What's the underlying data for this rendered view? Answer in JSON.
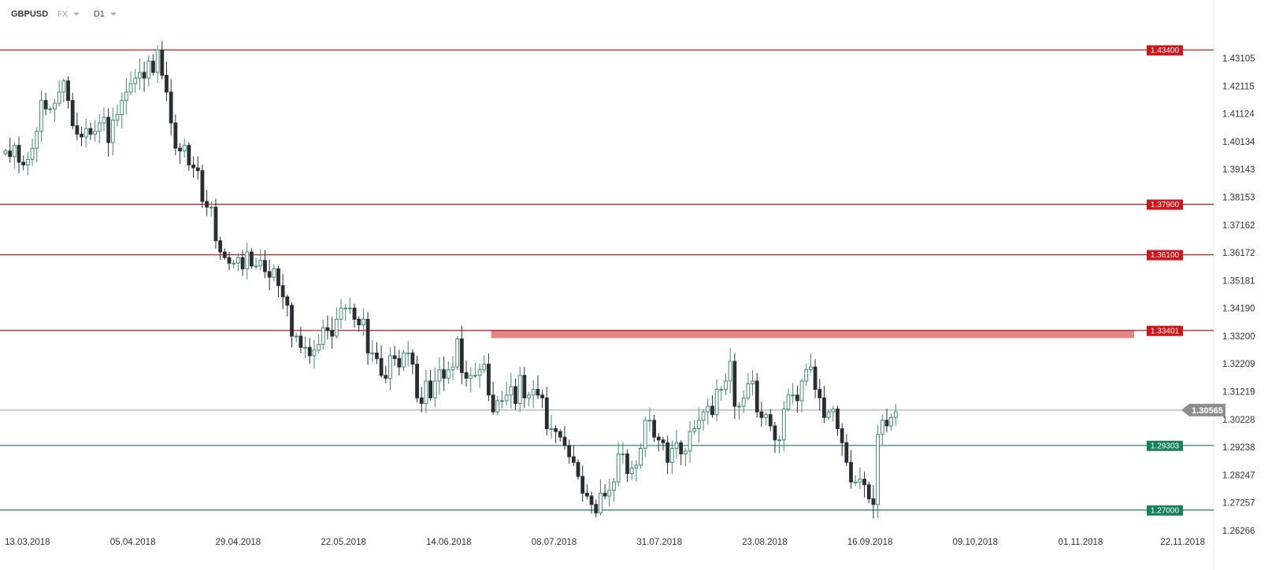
{
  "toolbar": {
    "symbol": "GBPUSD",
    "market": "FX",
    "timeframe": "D1"
  },
  "colors": {
    "bull": "#3d8f6b",
    "bear": "#2a2e33",
    "resistance": "#d0161b",
    "support": "#17805c",
    "current": "#999999",
    "zone": "#e78484",
    "axis_text": "#333333"
  },
  "chart_data": {
    "type": "candlestick",
    "symbol": "GBPUSD",
    "timeframe": "D1",
    "y_ticks": [
      "1.43105",
      "1.42115",
      "1.41124",
      "1.40134",
      "1.39143",
      "1.38153",
      "1.37162",
      "1.36172",
      "1.35181",
      "1.34190",
      "1.33200",
      "1.32209",
      "1.31219",
      "1.30228",
      "1.29238",
      "1.28247",
      "1.27257",
      "1.26266"
    ],
    "ylim": [
      1.2621,
      1.4434
    ],
    "x_labels": [
      "13.03.2018",
      "05.04.2018",
      "29.04.2018",
      "22.05.2018",
      "14.06.2018",
      "08.07.2018",
      "31.07.2018",
      "23.08.2018",
      "16.09.2018",
      "09.10.2018",
      "01.11.2018",
      "22.11.2018"
    ],
    "horizontal_levels": [
      {
        "label": "1.43400",
        "value": 1.434,
        "kind": "resistance"
      },
      {
        "label": "1.37900",
        "value": 1.379,
        "kind": "resistance"
      },
      {
        "label": "1.36100",
        "value": 1.361,
        "kind": "resistance"
      },
      {
        "label": "1.33401",
        "value": 1.33401,
        "kind": "resistance"
      },
      {
        "label": "1.29303",
        "value": 1.29303,
        "kind": "support"
      },
      {
        "label": "1.27000",
        "value": 1.27,
        "kind": "support"
      }
    ],
    "current_price": {
      "label": "1.30565",
      "value": 1.30565
    },
    "resistance_zone": {
      "from_date": "23.06.2018",
      "to_date": "11.11.2018",
      "low": 1.3313,
      "high": 1.3342
    },
    "closes": [
      1.398,
      1.396,
      1.4,
      1.394,
      1.393,
      1.395,
      1.399,
      1.405,
      1.416,
      1.413,
      1.413,
      1.415,
      1.419,
      1.423,
      1.416,
      1.407,
      1.404,
      1.403,
      1.406,
      1.404,
      1.405,
      1.408,
      1.41,
      1.401,
      1.409,
      1.411,
      1.416,
      1.419,
      1.422,
      1.424,
      1.426,
      1.424,
      1.43,
      1.426,
      1.434,
      1.425,
      1.419,
      1.408,
      1.399,
      1.398,
      1.4,
      1.393,
      1.392,
      1.391,
      1.38,
      1.378,
      1.378,
      1.366,
      1.362,
      1.36,
      1.358,
      1.358,
      1.36,
      1.356,
      1.362,
      1.357,
      1.357,
      1.359,
      1.355,
      1.353,
      1.356,
      1.35,
      1.346,
      1.343,
      1.332,
      1.332,
      1.328,
      1.328,
      1.325,
      1.327,
      1.329,
      1.335,
      1.334,
      1.332,
      1.338,
      1.342,
      1.342,
      1.342,
      1.338,
      1.336,
      1.338,
      1.326,
      1.326,
      1.324,
      1.318,
      1.317,
      1.325,
      1.324,
      1.321,
      1.326,
      1.326,
      1.322,
      1.31,
      1.308,
      1.316,
      1.31,
      1.316,
      1.32,
      1.317,
      1.32,
      1.321,
      1.331,
      1.319,
      1.317,
      1.318,
      1.318,
      1.32,
      1.322,
      1.311,
      1.305,
      1.309,
      1.309,
      1.311,
      1.314,
      1.308,
      1.318,
      1.31,
      1.311,
      1.313,
      1.311,
      1.31,
      1.299,
      1.299,
      1.298,
      1.296,
      1.293,
      1.289,
      1.287,
      1.282,
      1.276,
      1.275,
      1.272,
      1.269,
      1.276,
      1.275,
      1.277,
      1.28,
      1.29,
      1.29,
      1.283,
      1.285,
      1.286,
      1.292,
      1.302,
      1.302,
      1.296,
      1.295,
      1.294,
      1.287,
      1.292,
      1.294,
      1.29,
      1.291,
      1.298,
      1.299,
      1.302,
      1.305,
      1.307,
      1.304,
      1.313,
      1.313,
      1.316,
      1.323,
      1.307,
      1.307,
      1.31,
      1.315,
      1.316,
      1.305,
      1.303,
      1.304,
      1.3,
      1.295,
      1.295,
      1.306,
      1.311,
      1.311,
      1.309,
      1.316,
      1.32,
      1.321,
      1.313,
      1.31,
      1.303,
      1.305,
      1.306,
      1.299,
      1.294,
      1.287,
      1.28,
      1.28,
      1.281,
      1.279,
      1.274,
      1.272,
      1.297,
      1.302,
      1.3,
      1.303,
      1.305
    ],
    "years_shown": "2018"
  }
}
